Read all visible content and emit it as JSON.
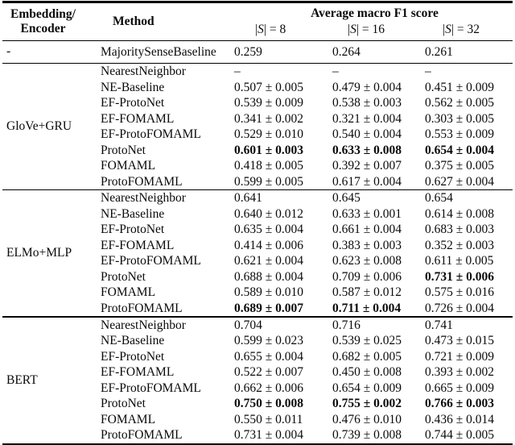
{
  "table": {
    "header": {
      "embedding_lines": [
        "Embedding/",
        "Encoder"
      ],
      "method_label": "Method",
      "score_group_label": "Average macro F1 score",
      "subcols": [
        {
          "open": "|",
          "var": "S",
          "close": "| = 8"
        },
        {
          "open": "|",
          "var": "S",
          "close": "| = 16"
        },
        {
          "open": "|",
          "var": "S",
          "close": "| = 32"
        }
      ]
    },
    "groups": [
      {
        "encoder": "-",
        "rows": [
          {
            "method": "MajoritySenseBaseline",
            "cells": [
              {
                "v": "0.259"
              },
              {
                "v": "0.264"
              },
              {
                "v": "0.261"
              }
            ]
          }
        ]
      },
      {
        "encoder": "GloVe+GRU",
        "rows": [
          {
            "method": "NearestNeighbor",
            "cells": [
              {
                "v": "–"
              },
              {
                "v": "–"
              },
              {
                "v": "–"
              }
            ]
          },
          {
            "method": "NE-Baseline",
            "cells": [
              {
                "v": "0.507 ± 0.005"
              },
              {
                "v": "0.479 ± 0.004"
              },
              {
                "v": "0.451 ± 0.009"
              }
            ]
          },
          {
            "method": "EF-ProtoNet",
            "cells": [
              {
                "v": "0.539 ± 0.009"
              },
              {
                "v": "0.538 ± 0.003"
              },
              {
                "v": "0.562 ± 0.005"
              }
            ]
          },
          {
            "method": "EF-FOMAML",
            "cells": [
              {
                "v": "0.341 ± 0.002"
              },
              {
                "v": "0.321 ± 0.004"
              },
              {
                "v": "0.303 ± 0.005"
              }
            ]
          },
          {
            "method": "EF-ProtoFOMAML",
            "cells": [
              {
                "v": "0.529 ± 0.010"
              },
              {
                "v": "0.540 ± 0.004"
              },
              {
                "v": "0.553 ± 0.009"
              }
            ]
          },
          {
            "method": "ProtoNet",
            "cells": [
              {
                "v": "0.601 ± 0.003",
                "b": true
              },
              {
                "v": "0.633 ± 0.008",
                "b": true
              },
              {
                "v": "0.654 ± 0.004",
                "b": true
              }
            ]
          },
          {
            "method": "FOMAML",
            "cells": [
              {
                "v": "0.418 ± 0.005"
              },
              {
                "v": "0.392 ± 0.007"
              },
              {
                "v": "0.375 ± 0.005"
              }
            ]
          },
          {
            "method": "ProtoFOMAML",
            "cells": [
              {
                "v": "0.599 ± 0.005"
              },
              {
                "v": "0.617 ± 0.004"
              },
              {
                "v": "0.627 ± 0.004"
              }
            ]
          }
        ]
      },
      {
        "encoder": "ELMo+MLP",
        "rows": [
          {
            "method": "NearestNeighbor",
            "cells": [
              {
                "v": "0.641"
              },
              {
                "v": "0.645"
              },
              {
                "v": "0.654"
              }
            ]
          },
          {
            "method": "NE-Baseline",
            "cells": [
              {
                "v": "0.640 ± 0.012"
              },
              {
                "v": "0.633 ± 0.001"
              },
              {
                "v": "0.614 ± 0.008"
              }
            ]
          },
          {
            "method": "EF-ProtoNet",
            "cells": [
              {
                "v": "0.635 ± 0.004"
              },
              {
                "v": "0.661 ± 0.004"
              },
              {
                "v": "0.683 ± 0.003"
              }
            ]
          },
          {
            "method": "EF-FOMAML",
            "cells": [
              {
                "v": "0.414 ± 0.006"
              },
              {
                "v": "0.383 ± 0.003"
              },
              {
                "v": "0.352 ± 0.003"
              }
            ]
          },
          {
            "method": "EF-ProtoFOMAML",
            "cells": [
              {
                "v": "0.621 ± 0.004"
              },
              {
                "v": "0.623 ± 0.008"
              },
              {
                "v": "0.611 ± 0.005"
              }
            ]
          },
          {
            "method": "ProtoNet",
            "cells": [
              {
                "v": "0.688 ± 0.004"
              },
              {
                "v": "0.709 ± 0.006"
              },
              {
                "v": "0.731 ± 0.006",
                "b": true
              }
            ]
          },
          {
            "method": "FOMAML",
            "cells": [
              {
                "v": "0.589 ± 0.010"
              },
              {
                "v": "0.587 ± 0.012"
              },
              {
                "v": "0.575 ± 0.016"
              }
            ]
          },
          {
            "method": "ProtoFOMAML",
            "cells": [
              {
                "v": "0.689 ± 0.007",
                "b": true
              },
              {
                "v": "0.711 ± 0.004",
                "b": true
              },
              {
                "v": "0.726 ± 0.004"
              }
            ]
          }
        ]
      },
      {
        "encoder": "BERT",
        "rows": [
          {
            "method": "NearestNeighbor",
            "cells": [
              {
                "v": "0.704"
              },
              {
                "v": "0.716"
              },
              {
                "v": "0.741"
              }
            ]
          },
          {
            "method": "NE-Baseline",
            "cells": [
              {
                "v": "0.599 ± 0.023"
              },
              {
                "v": "0.539 ± 0.025"
              },
              {
                "v": "0.473 ± 0.015"
              }
            ]
          },
          {
            "method": "EF-ProtoNet",
            "cells": [
              {
                "v": "0.655 ± 0.004"
              },
              {
                "v": "0.682 ± 0.005"
              },
              {
                "v": "0.721 ± 0.009"
              }
            ]
          },
          {
            "method": "EF-FOMAML",
            "cells": [
              {
                "v": "0.522 ± 0.007"
              },
              {
                "v": "0.450 ± 0.008"
              },
              {
                "v": "0.393 ± 0.002"
              }
            ]
          },
          {
            "method": "EF-ProtoFOMAML",
            "cells": [
              {
                "v": "0.662 ± 0.006"
              },
              {
                "v": "0.654 ± 0.009"
              },
              {
                "v": "0.665 ± 0.009"
              }
            ]
          },
          {
            "method": "ProtoNet",
            "cells": [
              {
                "v": "0.750 ± 0.008",
                "b": true
              },
              {
                "v": "0.755 ± 0.002",
                "b": true
              },
              {
                "v": "0.766 ± 0.003",
                "b": true
              }
            ]
          },
          {
            "method": "FOMAML",
            "cells": [
              {
                "v": "0.550 ± 0.011"
              },
              {
                "v": "0.476 ± 0.010"
              },
              {
                "v": "0.436 ± 0.014"
              }
            ]
          },
          {
            "method": "ProtoFOMAML",
            "cells": [
              {
                "v": "0.731 ± 0.004"
              },
              {
                "v": "0.739 ± 0.008"
              },
              {
                "v": "0.744 ± 0.005"
              }
            ]
          }
        ]
      }
    ]
  }
}
